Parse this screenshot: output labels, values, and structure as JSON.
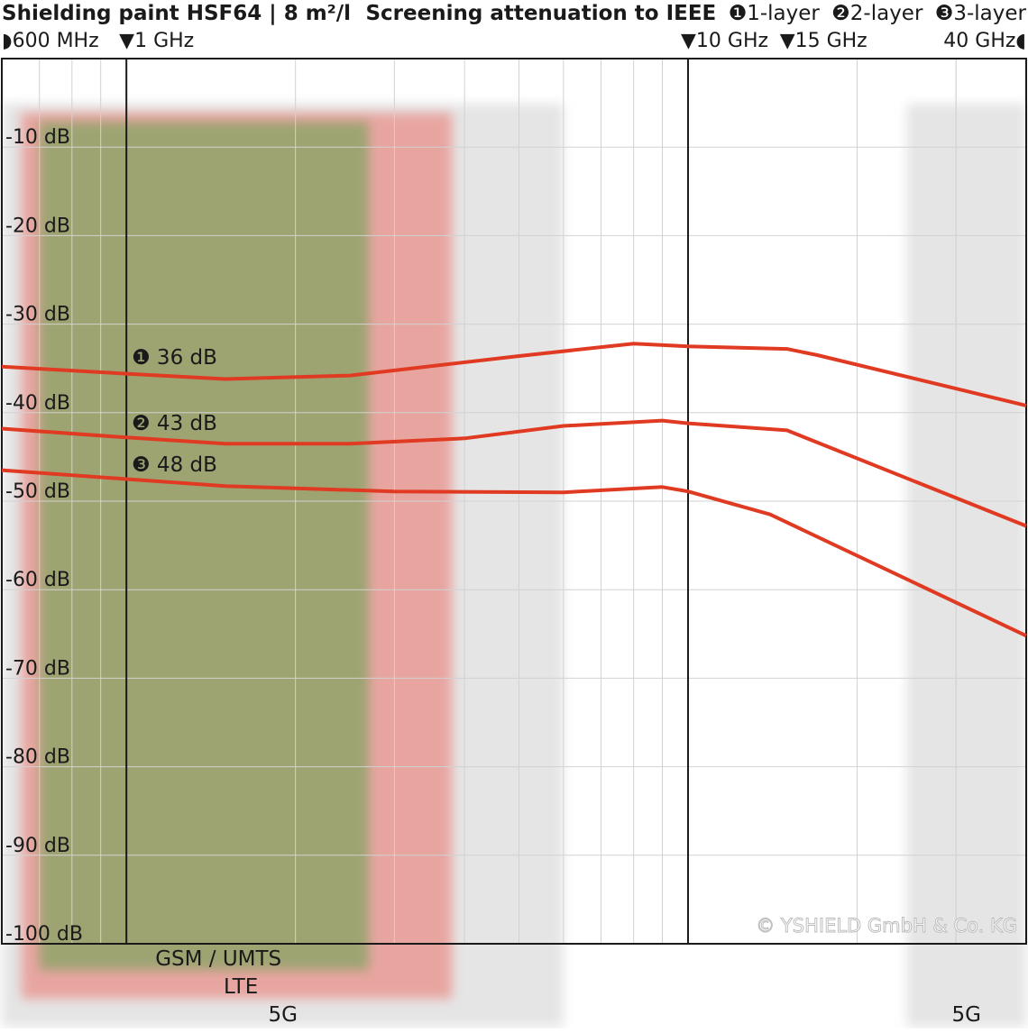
{
  "header": {
    "title": "Shielding paint HSF64 | 8 m²/l",
    "subtitle": "Screening attenuation to IEEE",
    "legend": [
      {
        "badge": "❶",
        "label": "1-layer"
      },
      {
        "badge": "❷",
        "label": "2-layer"
      },
      {
        "badge": "❸",
        "label": "3-layer"
      }
    ]
  },
  "markers": [
    {
      "label": "◗600 MHz",
      "freq_mhz": 600
    },
    {
      "label": "▼1 GHz",
      "freq_mhz": 1000
    },
    {
      "label": "▼10 GHz",
      "freq_mhz": 10000
    },
    {
      "label": "▼15 GHz",
      "freq_mhz": 15000
    },
    {
      "label": "40 GHz◖",
      "freq_mhz": 40000
    }
  ],
  "bands": [
    {
      "label": "GSM / UMTS",
      "from_mhz": 700,
      "to_mhz": 2700,
      "color": "#8fa36a"
    },
    {
      "label": "LTE",
      "from_mhz": 650,
      "to_mhz": 3800,
      "color": "#e8908a"
    },
    {
      "label": "5G",
      "from_mhz": 600,
      "to_mhz": 6000,
      "color": "#dcdcdc"
    },
    {
      "label": "5G",
      "from_mhz": 24500,
      "to_mhz": 40000,
      "color": "#dcdcdc"
    }
  ],
  "annotations": [
    {
      "text": "❶ 36 dB",
      "series": 0
    },
    {
      "text": "❷ 43 dB",
      "series": 1
    },
    {
      "text": "❸ 48 dB",
      "series": 2
    }
  ],
  "copyright": "© YSHIELD GmbH & Co. KG",
  "colors": {
    "series": "#e03a22",
    "grid": "#d2d2d2",
    "frame": "#1a1a1a"
  },
  "chart_data": {
    "type": "line",
    "title": "Shielding paint HSF64 | 8 m²/l",
    "xscale": "log",
    "xlim_mhz": [
      600,
      40000
    ],
    "ylim": [
      -100,
      0
    ],
    "yticks": [
      -10,
      -20,
      -30,
      -40,
      -50,
      -60,
      -70,
      -80,
      -90,
      -100
    ],
    "ytick_labels": [
      "-10 dB",
      "-20 dB",
      "-30 dB",
      "-40 dB",
      "-50 dB",
      "-60 dB",
      "-70 dB",
      "-80 dB",
      "-90 dB",
      "-100 dB"
    ],
    "grid": true,
    "series": [
      {
        "name": "1-layer",
        "points": [
          [
            600,
            -34.8
          ],
          [
            1000,
            -35.6
          ],
          [
            1500,
            -36.2
          ],
          [
            2500,
            -35.8
          ],
          [
            5000,
            -33.6
          ],
          [
            8000,
            -32.2
          ],
          [
            10000,
            -32.5
          ],
          [
            15000,
            -32.8
          ],
          [
            17000,
            -33.5
          ],
          [
            40000,
            -39.2
          ]
        ]
      },
      {
        "name": "2-layer",
        "points": [
          [
            600,
            -41.8
          ],
          [
            1000,
            -42.8
          ],
          [
            1500,
            -43.5
          ],
          [
            2500,
            -43.5
          ],
          [
            4000,
            -42.9
          ],
          [
            6000,
            -41.5
          ],
          [
            9000,
            -40.9
          ],
          [
            10000,
            -41.2
          ],
          [
            15000,
            -42.0
          ],
          [
            40000,
            -52.8
          ]
        ]
      },
      {
        "name": "3-layer",
        "points": [
          [
            600,
            -46.5
          ],
          [
            1000,
            -47.5
          ],
          [
            1500,
            -48.3
          ],
          [
            3000,
            -48.9
          ],
          [
            6000,
            -49.0
          ],
          [
            9000,
            -48.4
          ],
          [
            10000,
            -48.9
          ],
          [
            14000,
            -51.5
          ],
          [
            40000,
            -65.2
          ]
        ]
      }
    ]
  }
}
